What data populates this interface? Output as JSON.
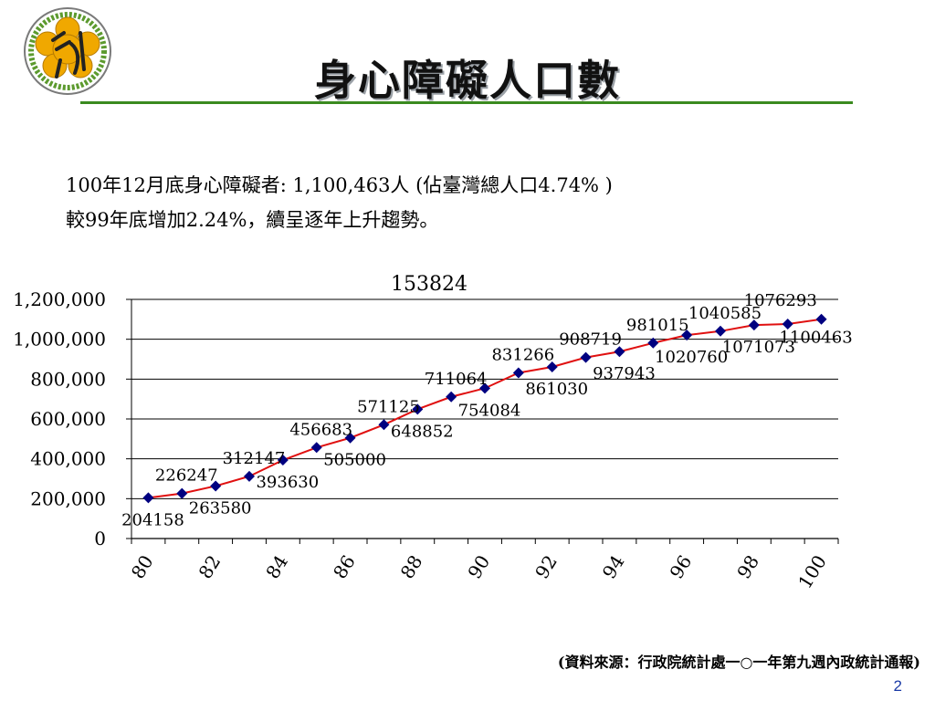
{
  "slide": {
    "title": "身心障礙人口數",
    "line1": "100年12月底身心障礙者: 1,100,463人 (佔臺灣總人口4.74% )",
    "line2": "較99年底增加2.24%，續呈逐年上升趨勢。",
    "source": "(資料來源：行政院統計處一○一年第九週內政統計通報)",
    "page_number": "2"
  },
  "colors": {
    "rule": "#3a8a1f",
    "line": "#e01010",
    "marker": "#000080",
    "logo": "#f0a800"
  },
  "chart_data": {
    "type": "line",
    "title": "153824",
    "x": [
      80,
      81,
      82,
      83,
      84,
      85,
      86,
      87,
      88,
      89,
      90,
      91,
      92,
      93,
      94,
      95,
      96,
      97,
      98,
      99,
      100
    ],
    "x_tick_labels": [
      "80",
      "82",
      "84",
      "86",
      "88",
      "90",
      "92",
      "94",
      "96",
      "98",
      "100"
    ],
    "series": [
      {
        "values": [
          204158,
          226247,
          263580,
          312147,
          393630,
          456683,
          505000,
          571125,
          648852,
          711064,
          754084,
          831266,
          861030,
          908719,
          937943,
          981015,
          1020760,
          1040585,
          1071073,
          1076293,
          1100463
        ]
      }
    ],
    "y_tick_labels": [
      "0",
      "200,000",
      "400,000",
      "600,000",
      "800,000",
      "1,000,000",
      "1,200,000"
    ],
    "ylim": [
      0,
      1200000
    ],
    "grid": true,
    "legend": "none"
  }
}
